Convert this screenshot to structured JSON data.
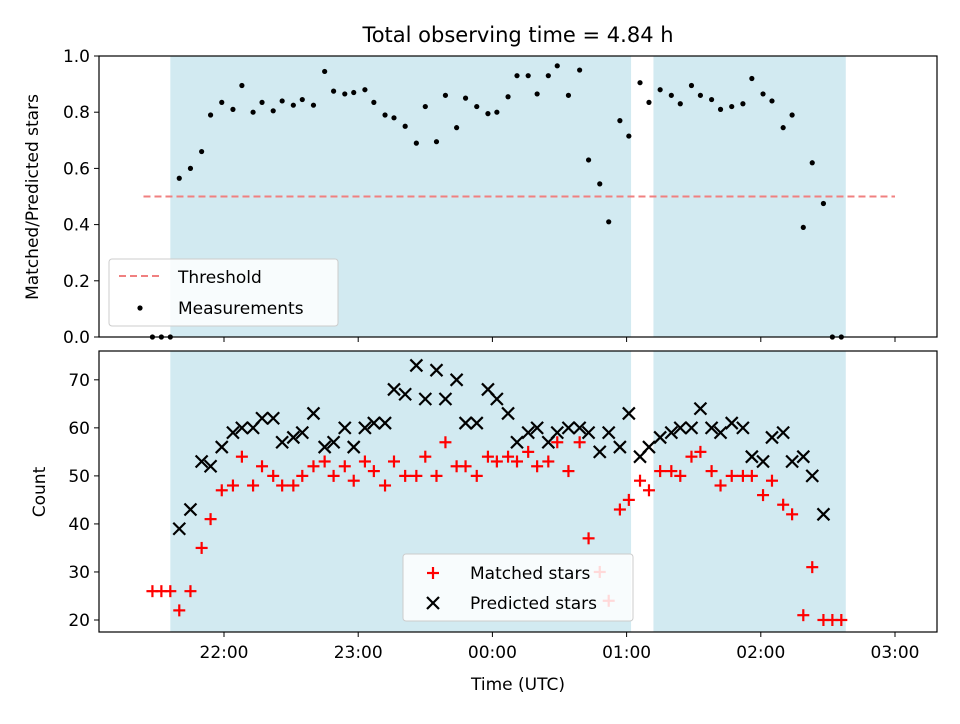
{
  "chart_data": [
    {
      "type": "scatter",
      "title": "Total observing time = 4.84 h",
      "xlabel": "",
      "ylabel": "Matched/Predicted stars",
      "ylim": [
        0,
        1.0
      ],
      "yticks": [
        "0.0",
        "0.2",
        "0.4",
        "0.6",
        "0.8",
        "1.0"
      ],
      "observing_windows": [
        {
          "start": "21:36",
          "end": "01:02"
        },
        {
          "start": "01:12",
          "end": "02:38"
        }
      ],
      "threshold": {
        "name": "Threshold",
        "value": 0.5,
        "color": "#f08080",
        "x_start": "21:24",
        "x_end": "03:00"
      },
      "series": [
        {
          "name": "Measurements",
          "color": "#000000",
          "points": [
            [
              "21:28",
              0.0
            ],
            [
              "21:32",
              0.0
            ],
            [
              "21:36",
              0.0
            ],
            [
              "21:40",
              0.565
            ],
            [
              "21:45",
              0.6
            ],
            [
              "21:50",
              0.66
            ],
            [
              "21:54",
              0.79
            ],
            [
              "21:59",
              0.835
            ],
            [
              "22:04",
              0.81
            ],
            [
              "22:08",
              0.895
            ],
            [
              "22:13",
              0.8
            ],
            [
              "22:17",
              0.835
            ],
            [
              "22:22",
              0.805
            ],
            [
              "22:26",
              0.84
            ],
            [
              "22:31",
              0.825
            ],
            [
              "22:35",
              0.845
            ],
            [
              "22:40",
              0.825
            ],
            [
              "22:45",
              0.945
            ],
            [
              "22:49",
              0.875
            ],
            [
              "22:54",
              0.865
            ],
            [
              "22:58",
              0.87
            ],
            [
              "23:03",
              0.88
            ],
            [
              "23:07",
              0.835
            ],
            [
              "23:12",
              0.79
            ],
            [
              "23:16",
              0.78
            ],
            [
              "23:21",
              0.75
            ],
            [
              "23:26",
              0.69
            ],
            [
              "23:30",
              0.82
            ],
            [
              "23:35",
              0.695
            ],
            [
              "23:39",
              0.86
            ],
            [
              "23:44",
              0.745
            ],
            [
              "23:48",
              0.85
            ],
            [
              "23:53",
              0.82
            ],
            [
              "23:58",
              0.795
            ],
            [
              "00:02",
              0.8
            ],
            [
              "00:07",
              0.855
            ],
            [
              "00:11",
              0.93
            ],
            [
              "00:16",
              0.93
            ],
            [
              "00:20",
              0.865
            ],
            [
              "00:25",
              0.93
            ],
            [
              "00:29",
              0.965
            ],
            [
              "00:34",
              0.86
            ],
            [
              "00:39",
              0.95
            ],
            [
              "00:43",
              0.63
            ],
            [
              "00:48",
              0.545
            ],
            [
              "00:52",
              0.41
            ],
            [
              "00:57",
              0.77
            ],
            [
              "01:01",
              0.715
            ],
            [
              "01:06",
              0.905
            ],
            [
              "01:10",
              0.835
            ],
            [
              "01:15",
              0.88
            ],
            [
              "01:20",
              0.86
            ],
            [
              "01:24",
              0.83
            ],
            [
              "01:29",
              0.895
            ],
            [
              "01:33",
              0.86
            ],
            [
              "01:38",
              0.845
            ],
            [
              "01:42",
              0.81
            ],
            [
              "01:47",
              0.82
            ],
            [
              "01:52",
              0.83
            ],
            [
              "01:56",
              0.92
            ],
            [
              "02:01",
              0.865
            ],
            [
              "02:05",
              0.84
            ],
            [
              "02:10",
              0.745
            ],
            [
              "02:14",
              0.79
            ],
            [
              "02:19",
              0.39
            ],
            [
              "02:23",
              0.62
            ],
            [
              "02:28",
              0.475
            ],
            [
              "02:32",
              0.0
            ],
            [
              "02:36",
              0.0
            ]
          ]
        }
      ],
      "legend": {
        "placement": "lower-left",
        "entries": [
          "Threshold",
          "Measurements"
        ]
      }
    },
    {
      "type": "scatter",
      "title": "",
      "xlabel": "Time (UTC)",
      "ylabel": "Count",
      "ylim": [
        17.5,
        76
      ],
      "yticks": [
        "20",
        "30",
        "40",
        "50",
        "60",
        "70"
      ],
      "xticks": [
        "22:00",
        "23:00",
        "00:00",
        "01:00",
        "02:00",
        "03:00"
      ],
      "observing_windows": [
        {
          "start": "21:36",
          "end": "01:02"
        },
        {
          "start": "01:12",
          "end": "02:38"
        }
      ],
      "series": [
        {
          "name": "Matched stars",
          "marker": "plus",
          "color": "#ff0000",
          "points": [
            [
              "21:28",
              26
            ],
            [
              "21:32",
              26
            ],
            [
              "21:36",
              26
            ],
            [
              "21:40",
              22
            ],
            [
              "21:45",
              26
            ],
            [
              "21:50",
              35
            ],
            [
              "21:54",
              41
            ],
            [
              "21:59",
              47
            ],
            [
              "22:04",
              48
            ],
            [
              "22:08",
              54
            ],
            [
              "22:13",
              48
            ],
            [
              "22:17",
              52
            ],
            [
              "22:22",
              50
            ],
            [
              "22:26",
              48
            ],
            [
              "22:31",
              48
            ],
            [
              "22:35",
              50
            ],
            [
              "22:40",
              52
            ],
            [
              "22:45",
              53
            ],
            [
              "22:49",
              50
            ],
            [
              "22:54",
              52
            ],
            [
              "22:58",
              49
            ],
            [
              "23:03",
              53
            ],
            [
              "23:07",
              51
            ],
            [
              "23:12",
              48
            ],
            [
              "23:16",
              53
            ],
            [
              "23:21",
              50
            ],
            [
              "23:26",
              50
            ],
            [
              "23:30",
              54
            ],
            [
              "23:35",
              50
            ],
            [
              "23:39",
              57
            ],
            [
              "23:44",
              52
            ],
            [
              "23:48",
              52
            ],
            [
              "23:53",
              50
            ],
            [
              "23:58",
              54
            ],
            [
              "00:02",
              53
            ],
            [
              "00:07",
              54
            ],
            [
              "00:11",
              53
            ],
            [
              "00:16",
              55
            ],
            [
              "00:20",
              52
            ],
            [
              "00:25",
              53
            ],
            [
              "00:29",
              57
            ],
            [
              "00:34",
              51
            ],
            [
              "00:39",
              57
            ],
            [
              "00:43",
              37
            ],
            [
              "00:48",
              30
            ],
            [
              "00:52",
              24
            ],
            [
              "00:57",
              43
            ],
            [
              "01:01",
              45
            ],
            [
              "01:06",
              49
            ],
            [
              "01:10",
              47
            ],
            [
              "01:15",
              51
            ],
            [
              "01:20",
              51
            ],
            [
              "01:24",
              50
            ],
            [
              "01:29",
              54
            ],
            [
              "01:33",
              55
            ],
            [
              "01:38",
              51
            ],
            [
              "01:42",
              48
            ],
            [
              "01:47",
              50
            ],
            [
              "01:52",
              50
            ],
            [
              "01:56",
              50
            ],
            [
              "02:01",
              46
            ],
            [
              "02:05",
              49
            ],
            [
              "02:10",
              44
            ],
            [
              "02:14",
              42
            ],
            [
              "02:19",
              21
            ],
            [
              "02:23",
              31
            ],
            [
              "02:28",
              20
            ],
            [
              "02:32",
              20
            ],
            [
              "02:36",
              20
            ]
          ]
        },
        {
          "name": "Predicted stars",
          "marker": "x",
          "color": "#000000",
          "points": [
            [
              "21:40",
              39
            ],
            [
              "21:45",
              43
            ],
            [
              "21:50",
              53
            ],
            [
              "21:54",
              52
            ],
            [
              "21:59",
              56
            ],
            [
              "22:04",
              59
            ],
            [
              "22:08",
              60
            ],
            [
              "22:13",
              60
            ],
            [
              "22:17",
              62
            ],
            [
              "22:22",
              62
            ],
            [
              "22:26",
              57
            ],
            [
              "22:31",
              58
            ],
            [
              "22:35",
              59
            ],
            [
              "22:40",
              63
            ],
            [
              "22:45",
              56
            ],
            [
              "22:49",
              57
            ],
            [
              "22:54",
              60
            ],
            [
              "22:58",
              56
            ],
            [
              "23:03",
              60
            ],
            [
              "23:07",
              61
            ],
            [
              "23:12",
              61
            ],
            [
              "23:16",
              68
            ],
            [
              "23:21",
              67
            ],
            [
              "23:26",
              73
            ],
            [
              "23:30",
              66
            ],
            [
              "23:35",
              72
            ],
            [
              "23:39",
              66
            ],
            [
              "23:44",
              70
            ],
            [
              "23:48",
              61
            ],
            [
              "23:53",
              61
            ],
            [
              "23:58",
              68
            ],
            [
              "00:02",
              66
            ],
            [
              "00:07",
              63
            ],
            [
              "00:11",
              57
            ],
            [
              "00:16",
              59
            ],
            [
              "00:20",
              60
            ],
            [
              "00:25",
              57
            ],
            [
              "00:29",
              59
            ],
            [
              "00:34",
              60
            ],
            [
              "00:39",
              60
            ],
            [
              "00:43",
              59
            ],
            [
              "00:48",
              55
            ],
            [
              "00:52",
              59
            ],
            [
              "00:57",
              56
            ],
            [
              "01:01",
              63
            ],
            [
              "01:06",
              54
            ],
            [
              "01:10",
              56
            ],
            [
              "01:15",
              58
            ],
            [
              "01:20",
              59
            ],
            [
              "01:24",
              60
            ],
            [
              "01:29",
              60
            ],
            [
              "01:33",
              64
            ],
            [
              "01:38",
              60
            ],
            [
              "01:42",
              59
            ],
            [
              "01:47",
              61
            ],
            [
              "01:52",
              60
            ],
            [
              "01:56",
              54
            ],
            [
              "02:01",
              53
            ],
            [
              "02:05",
              58
            ],
            [
              "02:10",
              59
            ],
            [
              "02:14",
              53
            ],
            [
              "02:19",
              54
            ],
            [
              "02:23",
              50
            ],
            [
              "02:28",
              42
            ]
          ]
        }
      ],
      "legend": {
        "placement": "lower-center",
        "entries": [
          "Matched stars",
          "Predicted stars"
        ]
      }
    }
  ],
  "colors": {
    "window_fill": "#add8e6"
  }
}
